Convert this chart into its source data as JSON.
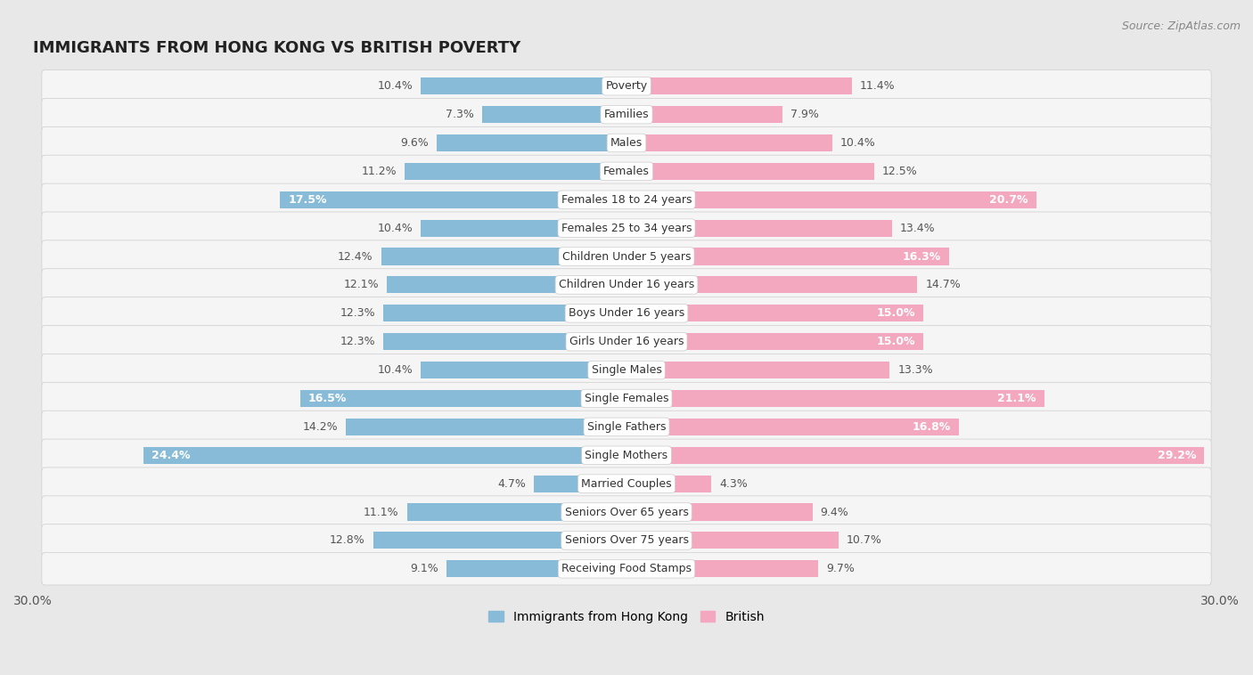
{
  "title": "IMMIGRANTS FROM HONG KONG VS BRITISH POVERTY",
  "source": "Source: ZipAtlas.com",
  "categories": [
    "Poverty",
    "Families",
    "Males",
    "Females",
    "Females 18 to 24 years",
    "Females 25 to 34 years",
    "Children Under 5 years",
    "Children Under 16 years",
    "Boys Under 16 years",
    "Girls Under 16 years",
    "Single Males",
    "Single Females",
    "Single Fathers",
    "Single Mothers",
    "Married Couples",
    "Seniors Over 65 years",
    "Seniors Over 75 years",
    "Receiving Food Stamps"
  ],
  "left_values": [
    10.4,
    7.3,
    9.6,
    11.2,
    17.5,
    10.4,
    12.4,
    12.1,
    12.3,
    12.3,
    10.4,
    16.5,
    14.2,
    24.4,
    4.7,
    11.1,
    12.8,
    9.1
  ],
  "right_values": [
    11.4,
    7.9,
    10.4,
    12.5,
    20.7,
    13.4,
    16.3,
    14.7,
    15.0,
    15.0,
    13.3,
    21.1,
    16.8,
    29.2,
    4.3,
    9.4,
    10.7,
    9.7
  ],
  "left_color": "#88bbd8",
  "right_color": "#f4a8c0",
  "left_label": "Immigrants from Hong Kong",
  "right_label": "British",
  "xlim": 30.0,
  "bg_color": "#e8e8e8",
  "row_color_light": "#f5f5f5",
  "row_color_dark": "#e8e8e8",
  "title_fontsize": 13,
  "source_fontsize": 9,
  "axis_fontsize": 10,
  "label_fontsize": 9,
  "value_fontsize": 9,
  "inside_value_color": "#ffffff",
  "outside_value_color": "#555555",
  "inside_threshold": 15.0
}
